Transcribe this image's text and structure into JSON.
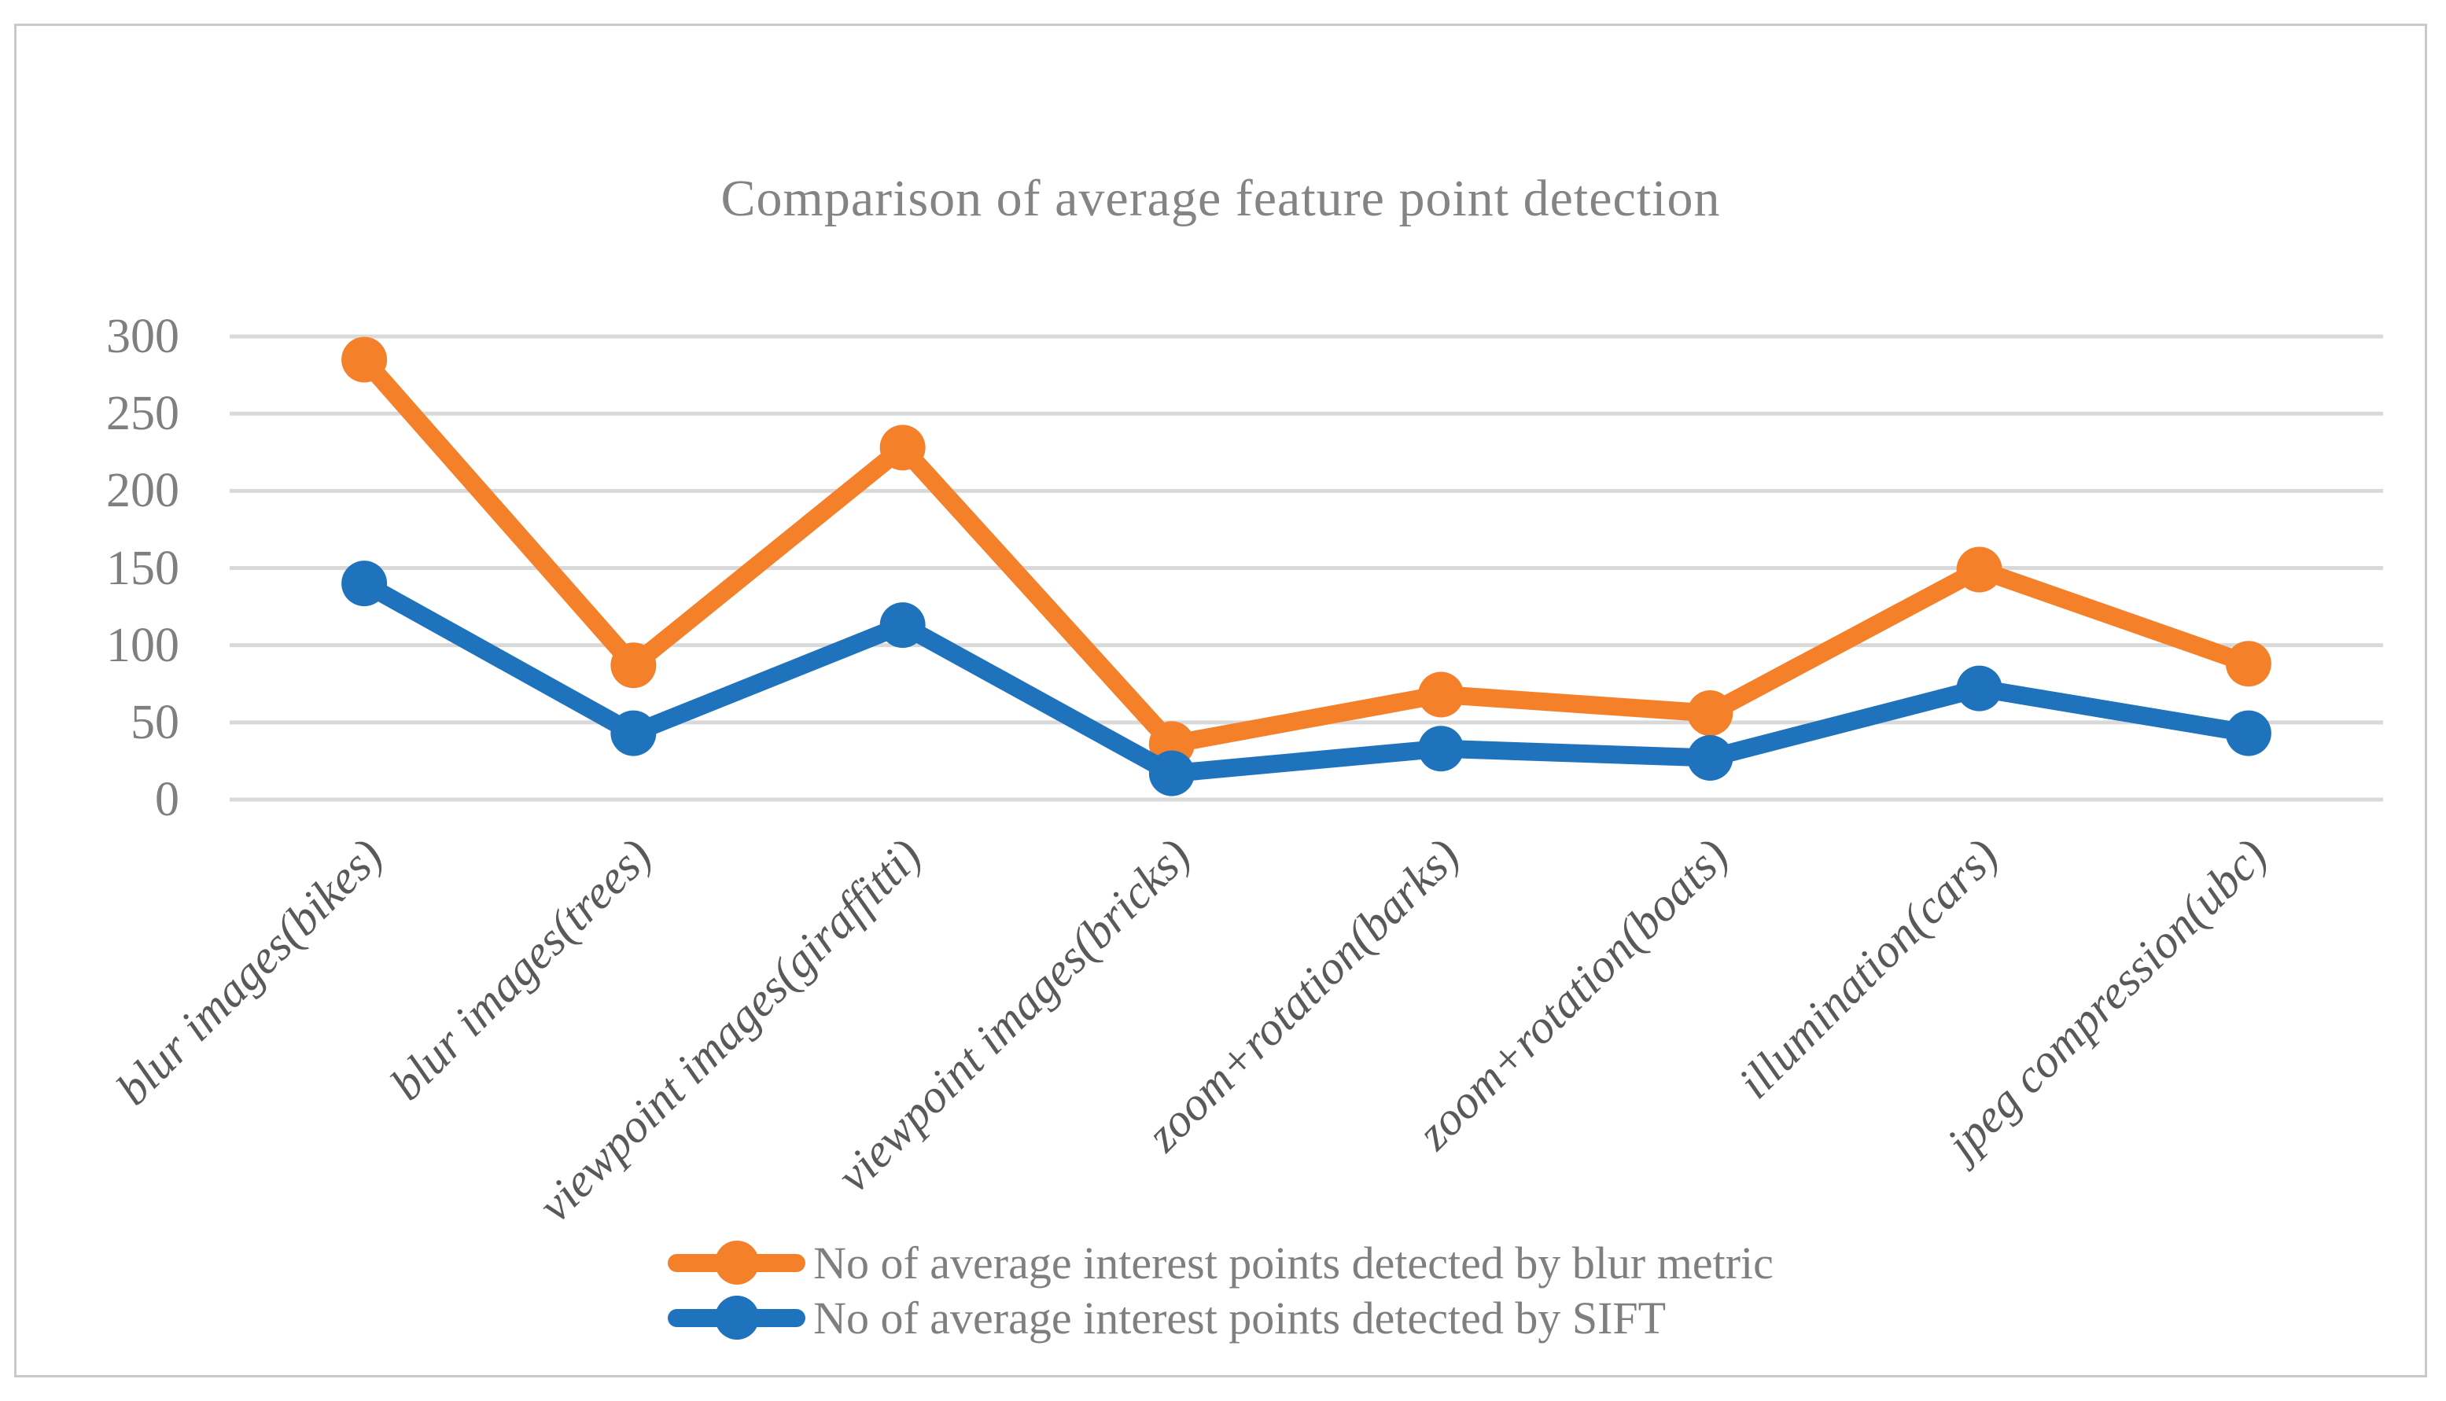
{
  "chart_data": {
    "type": "line",
    "title": "Comparison of average feature point detection",
    "categories": [
      "blur images(bikes)",
      "blur images(trees)",
      "viewpoint images(giraffitti)",
      "viewpoint images(bricks)",
      "zoom+rotation(barks)",
      "zoom+rotation(boats)",
      "illumination(cars)",
      "jpeg compression(ubc)"
    ],
    "series": [
      {
        "name": "No of average interest points detected by blur metric",
        "color": "#F5802A",
        "values": [
          285,
          87,
          228,
          36,
          68,
          56,
          149,
          88
        ]
      },
      {
        "name": "No of average interest points detected by SIFT",
        "color": "#1F73BD",
        "values": [
          140,
          43,
          113,
          17,
          33,
          27,
          72,
          43
        ]
      }
    ],
    "yticks": [
      0,
      50,
      100,
      150,
      200,
      250,
      300
    ],
    "ylim": [
      0,
      300
    ],
    "xlabel": "",
    "ylabel": "",
    "grid": "horizontal-only",
    "legend_position": "bottom-center",
    "colors": {
      "gridline": "#D9D9D9",
      "title_text": "#848484",
      "tick_text": "#7F7F7F",
      "category_text": "#595959",
      "legend_text": "#7F7F7F",
      "figure_border": "#C9C9C9",
      "background": "#FFFFFF"
    }
  }
}
